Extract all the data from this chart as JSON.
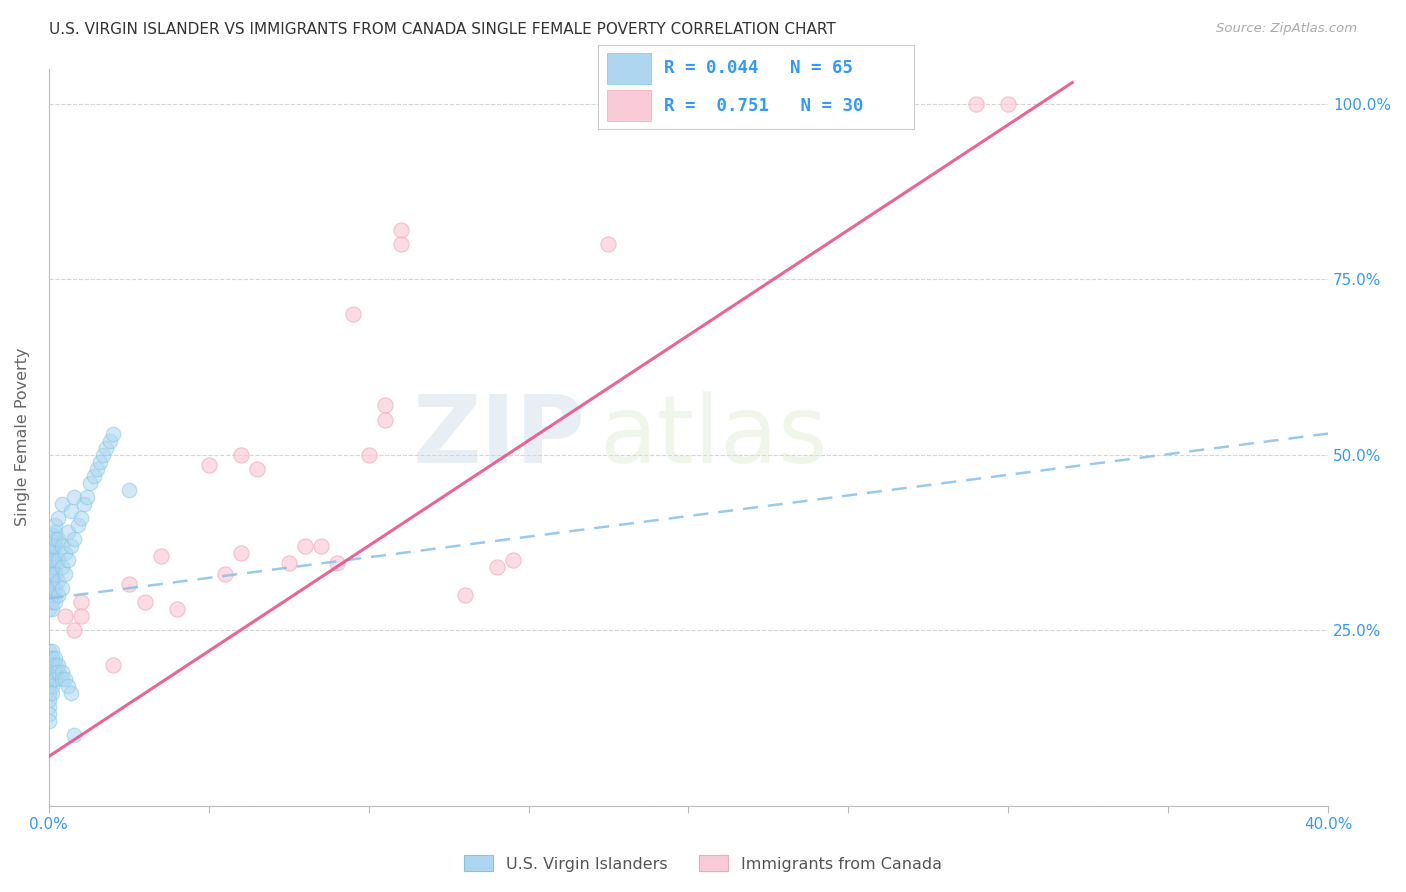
{
  "title": "U.S. VIRGIN ISLANDER VS IMMIGRANTS FROM CANADA SINGLE FEMALE POVERTY CORRELATION CHART",
  "source": "Source: ZipAtlas.com",
  "ylabel": "Single Female Poverty",
  "xlim": [
    0.0,
    0.4
  ],
  "ylim": [
    0.0,
    1.05
  ],
  "xticks": [
    0.0,
    0.05,
    0.1,
    0.15,
    0.2,
    0.25,
    0.3,
    0.35,
    0.4
  ],
  "xticklabels": [
    "0.0%",
    "",
    "",
    "",
    "",
    "",
    "",
    "",
    "40.0%"
  ],
  "yticks": [
    0.0,
    0.25,
    0.5,
    0.75,
    1.0
  ],
  "yticklabels_right": [
    "",
    "25.0%",
    "50.0%",
    "75.0%",
    "100.0%"
  ],
  "watermark_zip": "ZIP",
  "watermark_atlas": "atlas",
  "legend_line1": "R = 0.044   N = 65",
  "legend_line2": "R =  0.751   N = 30",
  "color_blue": "#7ec8e3",
  "color_blue_fill": "#aed6f1",
  "color_pink": "#f4a7b9",
  "color_pink_fill": "#f9cad7",
  "color_blue_line": "#85c1e9",
  "color_pink_line": "#e8548a",
  "color_title": "#333333",
  "color_r_value": "#3399ff",
  "color_source": "#aaaaaa",
  "blue_scatter_x": [
    0.0,
    0.0,
    0.0,
    0.0,
    0.0,
    0.0,
    0.0,
    0.0,
    0.0,
    0.001,
    0.001,
    0.001,
    0.001,
    0.001,
    0.001,
    0.001,
    0.001,
    0.001,
    0.001,
    0.001,
    0.001,
    0.001,
    0.001,
    0.001,
    0.001,
    0.001,
    0.001,
    0.002,
    0.002,
    0.002,
    0.002,
    0.002,
    0.002,
    0.002,
    0.002,
    0.003,
    0.003,
    0.003,
    0.003,
    0.003,
    0.004,
    0.004,
    0.004,
    0.004,
    0.005,
    0.005,
    0.006,
    0.006,
    0.007,
    0.007,
    0.008,
    0.008,
    0.009,
    0.01,
    0.011,
    0.012,
    0.013,
    0.014,
    0.015,
    0.016,
    0.017,
    0.018,
    0.019,
    0.02,
    0.025
  ],
  "blue_scatter_y": [
    0.28,
    0.3,
    0.32,
    0.33,
    0.34,
    0.35,
    0.355,
    0.36,
    0.37,
    0.28,
    0.3,
    0.315,
    0.325,
    0.335,
    0.345,
    0.355,
    0.365,
    0.375,
    0.385,
    0.29,
    0.31,
    0.32,
    0.33,
    0.34,
    0.35,
    0.36,
    0.37,
    0.29,
    0.31,
    0.33,
    0.35,
    0.37,
    0.38,
    0.39,
    0.4,
    0.3,
    0.32,
    0.35,
    0.38,
    0.41,
    0.31,
    0.34,
    0.37,
    0.43,
    0.33,
    0.36,
    0.35,
    0.39,
    0.37,
    0.42,
    0.38,
    0.44,
    0.4,
    0.41,
    0.43,
    0.44,
    0.46,
    0.47,
    0.48,
    0.49,
    0.5,
    0.51,
    0.52,
    0.53,
    0.45
  ],
  "blue_scatter_low_x": [
    0.0,
    0.0,
    0.0,
    0.0,
    0.0,
    0.0,
    0.0,
    0.0,
    0.0,
    0.0,
    0.0,
    0.001,
    0.001,
    0.001,
    0.001,
    0.001,
    0.001,
    0.001,
    0.002,
    0.002,
    0.002,
    0.002,
    0.003,
    0.003,
    0.004,
    0.004,
    0.005,
    0.006,
    0.007,
    0.008
  ],
  "blue_scatter_low_y": [
    0.22,
    0.21,
    0.2,
    0.19,
    0.18,
    0.17,
    0.16,
    0.15,
    0.14,
    0.13,
    0.12,
    0.22,
    0.21,
    0.2,
    0.19,
    0.18,
    0.17,
    0.16,
    0.21,
    0.2,
    0.19,
    0.18,
    0.2,
    0.19,
    0.19,
    0.18,
    0.18,
    0.17,
    0.16,
    0.1
  ],
  "pink_scatter_x": [
    0.005,
    0.008,
    0.01,
    0.01,
    0.02,
    0.025,
    0.03,
    0.035,
    0.04,
    0.05,
    0.055,
    0.06,
    0.06,
    0.065,
    0.075,
    0.08,
    0.085,
    0.09,
    0.095,
    0.1,
    0.105,
    0.105,
    0.11,
    0.11,
    0.13,
    0.14,
    0.145,
    0.175,
    0.29,
    0.3
  ],
  "pink_scatter_y": [
    0.27,
    0.25,
    0.29,
    0.27,
    0.2,
    0.315,
    0.29,
    0.355,
    0.28,
    0.485,
    0.33,
    0.36,
    0.5,
    0.48,
    0.345,
    0.37,
    0.37,
    0.345,
    0.7,
    0.5,
    0.57,
    0.55,
    0.82,
    0.8,
    0.3,
    0.34,
    0.35,
    0.8,
    1.0,
    1.0
  ],
  "blue_line_x": [
    0.0,
    0.4
  ],
  "blue_line_y": [
    0.295,
    0.53
  ],
  "pink_line_x": [
    0.0,
    0.32
  ],
  "pink_line_y": [
    0.07,
    1.03
  ],
  "grid_color": "#d5d5d5",
  "background_color": "#ffffff"
}
